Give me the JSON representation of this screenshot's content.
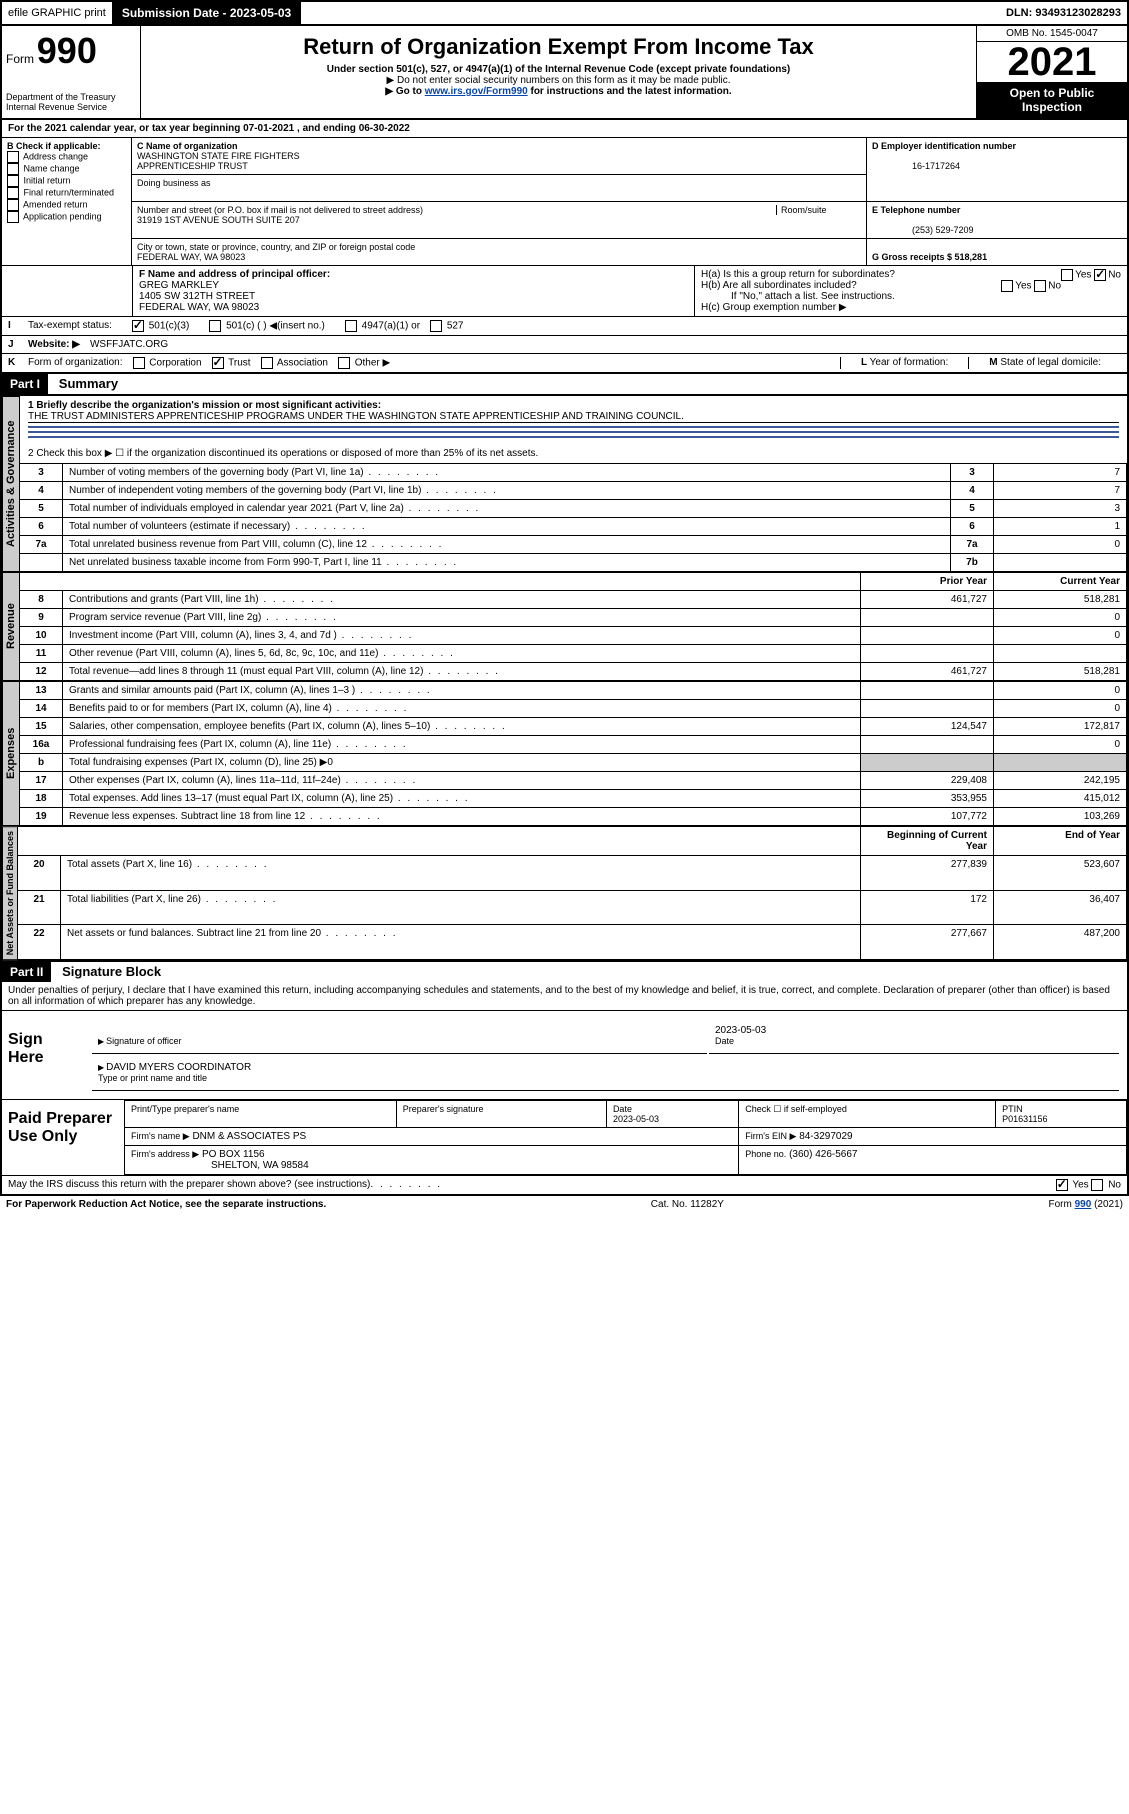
{
  "header_bar": {
    "efile": "efile GRAPHIC print",
    "submission_label": "Submission Date - 2023-05-03",
    "dln": "DLN: 93493123028293"
  },
  "form_header": {
    "form_label": "Form",
    "form_number": "990",
    "dept1": "Department of the Treasury",
    "dept2": "Internal Revenue Service",
    "title": "Return of Organization Exempt From Income Tax",
    "subtitle": "Under section 501(c), 527, or 4947(a)(1) of the Internal Revenue Code (except private foundations)",
    "note1": "▶ Do not enter social security numbers on this form as it may be made public.",
    "note2_pre": "▶ Go to ",
    "note2_link": "www.irs.gov/Form990",
    "note2_post": " for instructions and the latest information.",
    "omb": "OMB No. 1545-0047",
    "year": "2021",
    "inspection1": "Open to Public",
    "inspection2": "Inspection"
  },
  "lineA": "For the 2021 calendar year, or tax year beginning 07-01-2021   , and ending 06-30-2022",
  "checkB": {
    "label": "B Check if applicable:",
    "items": [
      "Address change",
      "Name change",
      "Initial return",
      "Final return/terminated",
      "Amended return",
      "Application pending"
    ]
  },
  "boxC": {
    "label": "C Name of organization",
    "name1": "WASHINGTON STATE FIRE FIGHTERS",
    "name2": "APPRENTICESHIP TRUST",
    "dba": "Doing business as",
    "addr_label": "Number and street (or P.O. box if mail is not delivered to street address)",
    "room": "Room/suite",
    "addr": "31919 1ST AVENUE SOUTH SUITE 207",
    "city_label": "City or town, state or province, country, and ZIP or foreign postal code",
    "city": "FEDERAL WAY, WA  98023"
  },
  "boxD": {
    "label": "D Employer identification number",
    "val": "16-1717264"
  },
  "boxE": {
    "label": "E Telephone number",
    "val": "(253) 529-7209"
  },
  "boxG": {
    "label": "G Gross receipts $ 518,281"
  },
  "boxF": {
    "label": "F  Name and address of principal officer:",
    "name": "GREG MARKLEY",
    "addr1": "1405 SW 312TH STREET",
    "addr2": "FEDERAL WAY, WA  98023"
  },
  "boxH": {
    "a": "H(a)  Is this a group return for subordinates?",
    "b": "H(b)  Are all subordinates included?",
    "bnote": "If \"No,\" attach a list. See instructions.",
    "c": "H(c)  Group exemption number ▶",
    "yes": "Yes",
    "no": "No"
  },
  "lineI": {
    "label": "I",
    "text": "Tax-exempt status:",
    "opts": [
      "501(c)(3)",
      "501(c) (  ) ◀(insert no.)",
      "4947(a)(1) or",
      "527"
    ]
  },
  "lineJ": {
    "label": "J",
    "text": "Website: ▶",
    "val": "WSFFJATC.ORG"
  },
  "lineK": {
    "label": "K",
    "text": "Form of organization:",
    "opts": [
      "Corporation",
      "Trust",
      "Association",
      "Other ▶"
    ]
  },
  "lineL": {
    "label": "L",
    "text": "Year of formation:"
  },
  "lineM": {
    "label": "M",
    "text": "State of legal domicile:"
  },
  "part1": {
    "num": "Part I",
    "title": "Summary"
  },
  "mission": {
    "label": "1  Briefly describe the organization's mission or most significant activities:",
    "text": "THE TRUST ADMINISTERS APPRENTICESHIP PROGRAMS UNDER THE WASHINGTON STATE APPRENTICESHIP AND TRAINING COUNCIL."
  },
  "line2": "2   Check this box ▶ ☐  if the organization discontinued its operations or disposed of more than 25% of its net assets.",
  "governance_rows": [
    {
      "n": "3",
      "t": "Number of voting members of the governing body (Part VI, line 1a)",
      "box": "3",
      "v": "7"
    },
    {
      "n": "4",
      "t": "Number of independent voting members of the governing body (Part VI, line 1b)",
      "box": "4",
      "v": "7"
    },
    {
      "n": "5",
      "t": "Total number of individuals employed in calendar year 2021 (Part V, line 2a)",
      "box": "5",
      "v": "3"
    },
    {
      "n": "6",
      "t": "Total number of volunteers (estimate if necessary)",
      "box": "6",
      "v": "1"
    },
    {
      "n": "7a",
      "t": "Total unrelated business revenue from Part VIII, column (C), line 12",
      "box": "7a",
      "v": "0"
    },
    {
      "n": "",
      "t": "Net unrelated business taxable income from Form 990-T, Part I, line 11",
      "box": "7b",
      "v": ""
    }
  ],
  "col_headers": {
    "prior": "Prior Year",
    "current": "Current Year"
  },
  "revenue_rows": [
    {
      "n": "8",
      "t": "Contributions and grants (Part VIII, line 1h)",
      "p": "461,727",
      "c": "518,281"
    },
    {
      "n": "9",
      "t": "Program service revenue (Part VIII, line 2g)",
      "p": "",
      "c": "0"
    },
    {
      "n": "10",
      "t": "Investment income (Part VIII, column (A), lines 3, 4, and 7d )",
      "p": "",
      "c": "0"
    },
    {
      "n": "11",
      "t": "Other revenue (Part VIII, column (A), lines 5, 6d, 8c, 9c, 10c, and 11e)",
      "p": "",
      "c": ""
    },
    {
      "n": "12",
      "t": "Total revenue—add lines 8 through 11 (must equal Part VIII, column (A), line 12)",
      "p": "461,727",
      "c": "518,281"
    }
  ],
  "expense_rows": [
    {
      "n": "13",
      "t": "Grants and similar amounts paid (Part IX, column (A), lines 1–3 )",
      "p": "",
      "c": "0"
    },
    {
      "n": "14",
      "t": "Benefits paid to or for members (Part IX, column (A), line 4)",
      "p": "",
      "c": "0"
    },
    {
      "n": "15",
      "t": "Salaries, other compensation, employee benefits (Part IX, column (A), lines 5–10)",
      "p": "124,547",
      "c": "172,817"
    },
    {
      "n": "16a",
      "t": "Professional fundraising fees (Part IX, column (A), line 11e)",
      "p": "",
      "c": "0"
    },
    {
      "n": "b",
      "t": "Total fundraising expenses (Part IX, column (D), line 25) ▶0",
      "p": "",
      "c": "",
      "grey": true
    },
    {
      "n": "17",
      "t": "Other expenses (Part IX, column (A), lines 11a–11d, 11f–24e)",
      "p": "229,408",
      "c": "242,195"
    },
    {
      "n": "18",
      "t": "Total expenses. Add lines 13–17 (must equal Part IX, column (A), line 25)",
      "p": "353,955",
      "c": "415,012"
    },
    {
      "n": "19",
      "t": "Revenue less expenses. Subtract line 18 from line 12",
      "p": "107,772",
      "c": "103,269"
    }
  ],
  "balance_headers": {
    "begin": "Beginning of Current Year",
    "end": "End of Year"
  },
  "balance_rows": [
    {
      "n": "20",
      "t": "Total assets (Part X, line 16)",
      "p": "277,839",
      "c": "523,607"
    },
    {
      "n": "21",
      "t": "Total liabilities (Part X, line 26)",
      "p": "172",
      "c": "36,407"
    },
    {
      "n": "22",
      "t": "Net assets or fund balances. Subtract line 21 from line 20",
      "p": "277,667",
      "c": "487,200"
    }
  ],
  "part2": {
    "num": "Part II",
    "title": "Signature Block"
  },
  "penalty": "Under penalties of perjury, I declare that I have examined this return, including accompanying schedules and statements, and to the best of my knowledge and belief, it is true, correct, and complete. Declaration of preparer (other than officer) is based on all information of which preparer has any knowledge.",
  "sign": {
    "here": "Sign Here",
    "sig_officer": "Signature of officer",
    "date_label": "Date",
    "date": "2023-05-03",
    "name": "DAVID MYERS  COORDINATOR",
    "name_label": "Type or print name and title"
  },
  "paid": {
    "title": "Paid Preparer Use Only",
    "h1": "Print/Type preparer's name",
    "h2": "Preparer's signature",
    "h3": "Date",
    "h4": "Check ☐ if self-employed",
    "h5": "PTIN",
    "date": "2023-05-03",
    "ptin": "P01631156",
    "firm_label": "Firm's name   ▶",
    "firm": "DNM & ASSOCIATES PS",
    "ein_label": "Firm's EIN ▶",
    "ein": "84-3297029",
    "addr_label": "Firm's address ▶",
    "addr1": "PO BOX 1156",
    "addr2": "SHELTON, WA  98584",
    "phone_label": "Phone no.",
    "phone": "(360) 426-5667"
  },
  "footer": {
    "discuss": "May the IRS discuss this return with the preparer shown above? (see instructions)",
    "yes": "Yes",
    "no": "No",
    "paperwork": "For Paperwork Reduction Act Notice, see the separate instructions.",
    "cat": "Cat. No. 11282Y",
    "form": "Form 990 (2021)"
  },
  "vert_labels": {
    "act": "Activities & Governance",
    "rev": "Revenue",
    "exp": "Expenses",
    "net": "Net Assets or Fund Balances"
  }
}
